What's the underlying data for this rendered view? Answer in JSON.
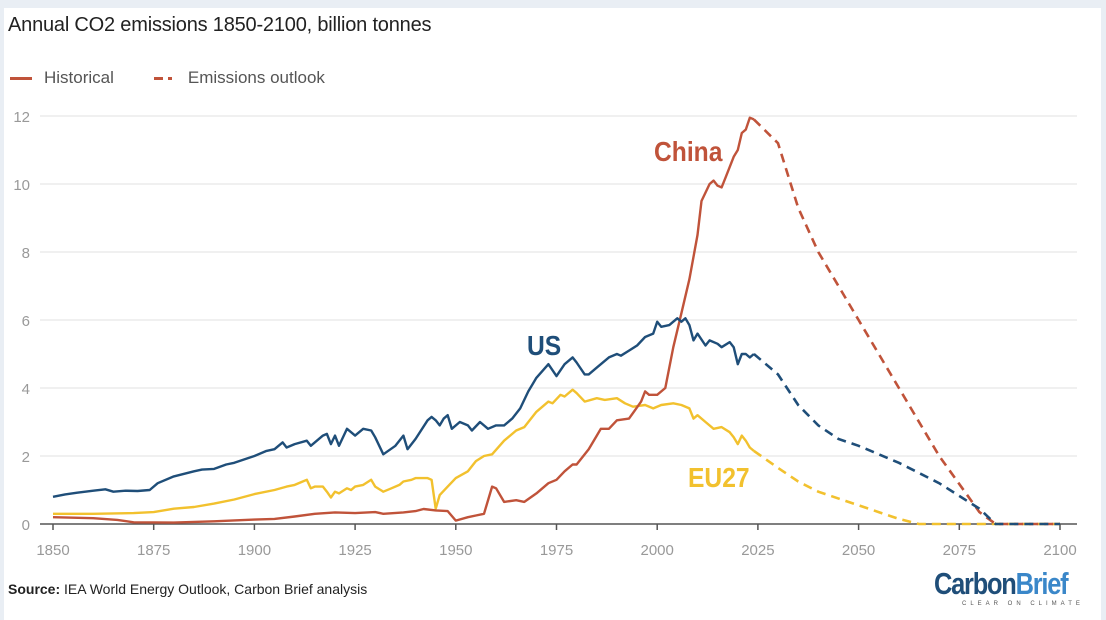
{
  "title": "Annual CO2 emissions 1850-2100, billion tonnes",
  "legend": {
    "historical": "Historical",
    "outlook": "Emissions outlook"
  },
  "source_label": "Source:",
  "source_text": " IEA World Energy Outlook, Carbon Brief analysis",
  "logo": {
    "carbon": "Carbon",
    "brief": "Brief",
    "tagline": "CLEAR ON CLIMATE"
  },
  "colors": {
    "china": "#c0533a",
    "us": "#1f4e79",
    "eu27": "#f2c12e",
    "grid": "#e6e6e6",
    "axis": "#555555",
    "tick_text": "#999999"
  },
  "chart_data": {
    "type": "line",
    "title": "Annual CO2 emissions 1850-2100, billion tonnes",
    "xlabel": "",
    "ylabel": "",
    "xlim": [
      1850,
      2100
    ],
    "ylim": [
      0,
      12
    ],
    "x_ticks": [
      1850,
      1875,
      1900,
      1925,
      1950,
      1975,
      2000,
      2025,
      2050,
      2075,
      2100
    ],
    "y_ticks": [
      0,
      2,
      4,
      6,
      8,
      10,
      12
    ],
    "grid": true,
    "legend_position": "top-left",
    "series": [
      {
        "name": "China",
        "label": "China",
        "historical": [
          [
            1850,
            0.2
          ],
          [
            1860,
            0.17
          ],
          [
            1866,
            0.12
          ],
          [
            1870,
            0.05
          ],
          [
            1880,
            0.04
          ],
          [
            1890,
            0.08
          ],
          [
            1900,
            0.13
          ],
          [
            1905,
            0.15
          ],
          [
            1910,
            0.22
          ],
          [
            1915,
            0.3
          ],
          [
            1920,
            0.34
          ],
          [
            1925,
            0.32
          ],
          [
            1930,
            0.35
          ],
          [
            1932,
            0.3
          ],
          [
            1937,
            0.34
          ],
          [
            1940,
            0.38
          ],
          [
            1942,
            0.44
          ],
          [
            1945,
            0.4
          ],
          [
            1948,
            0.38
          ],
          [
            1950,
            0.1
          ],
          [
            1953,
            0.2
          ],
          [
            1955,
            0.25
          ],
          [
            1957,
            0.3
          ],
          [
            1959,
            1.1
          ],
          [
            1960,
            1.05
          ],
          [
            1962,
            0.65
          ],
          [
            1965,
            0.7
          ],
          [
            1967,
            0.65
          ],
          [
            1970,
            0.9
          ],
          [
            1973,
            1.2
          ],
          [
            1975,
            1.3
          ],
          [
            1977,
            1.55
          ],
          [
            1979,
            1.75
          ],
          [
            1980,
            1.75
          ],
          [
            1983,
            2.2
          ],
          [
            1985,
            2.6
          ],
          [
            1986,
            2.8
          ],
          [
            1988,
            2.8
          ],
          [
            1990,
            3.05
          ],
          [
            1993,
            3.1
          ],
          [
            1996,
            3.6
          ],
          [
            1997,
            3.9
          ],
          [
            1998,
            3.8
          ],
          [
            2000,
            3.8
          ],
          [
            2002,
            4.0
          ],
          [
            2004,
            5.2
          ],
          [
            2006,
            6.2
          ],
          [
            2008,
            7.2
          ],
          [
            2010,
            8.5
          ],
          [
            2011,
            9.5
          ],
          [
            2013,
            10.0
          ],
          [
            2014,
            10.1
          ],
          [
            2015,
            9.95
          ],
          [
            2016,
            9.9
          ],
          [
            2017,
            10.2
          ],
          [
            2019,
            10.8
          ],
          [
            2020,
            11.0
          ],
          [
            2021,
            11.5
          ],
          [
            2022,
            11.6
          ],
          [
            2023,
            11.95
          ],
          [
            2024,
            11.9
          ]
        ],
        "outlook": [
          [
            2024,
            11.9
          ],
          [
            2030,
            11.2
          ],
          [
            2035,
            9.3
          ],
          [
            2040,
            8.0
          ],
          [
            2050,
            6.0
          ],
          [
            2060,
            4.0
          ],
          [
            2070,
            2.0
          ],
          [
            2080,
            0.35
          ],
          [
            2084,
            0.0
          ],
          [
            2100,
            0.0
          ]
        ]
      },
      {
        "name": "US",
        "label": "US",
        "historical": [
          [
            1850,
            0.8
          ],
          [
            1853,
            0.87
          ],
          [
            1856,
            0.92
          ],
          [
            1860,
            0.98
          ],
          [
            1863,
            1.02
          ],
          [
            1865,
            0.95
          ],
          [
            1868,
            0.98
          ],
          [
            1871,
            0.97
          ],
          [
            1874,
            1.0
          ],
          [
            1876,
            1.2
          ],
          [
            1880,
            1.4
          ],
          [
            1885,
            1.55
          ],
          [
            1887,
            1.6
          ],
          [
            1890,
            1.62
          ],
          [
            1893,
            1.75
          ],
          [
            1895,
            1.8
          ],
          [
            1900,
            2.0
          ],
          [
            1903,
            2.15
          ],
          [
            1905,
            2.2
          ],
          [
            1907,
            2.4
          ],
          [
            1908,
            2.25
          ],
          [
            1910,
            2.35
          ],
          [
            1913,
            2.45
          ],
          [
            1914,
            2.3
          ],
          [
            1917,
            2.6
          ],
          [
            1918,
            2.65
          ],
          [
            1919,
            2.35
          ],
          [
            1920,
            2.6
          ],
          [
            1921,
            2.3
          ],
          [
            1923,
            2.8
          ],
          [
            1925,
            2.6
          ],
          [
            1927,
            2.8
          ],
          [
            1929,
            2.75
          ],
          [
            1930,
            2.55
          ],
          [
            1932,
            2.05
          ],
          [
            1935,
            2.3
          ],
          [
            1937,
            2.6
          ],
          [
            1938,
            2.2
          ],
          [
            1940,
            2.5
          ],
          [
            1943,
            3.05
          ],
          [
            1944,
            3.15
          ],
          [
            1945,
            3.05
          ],
          [
            1946,
            2.9
          ],
          [
            1947,
            3.1
          ],
          [
            1948,
            3.2
          ],
          [
            1949,
            2.8
          ],
          [
            1951,
            3.0
          ],
          [
            1953,
            2.9
          ],
          [
            1954,
            2.75
          ],
          [
            1956,
            3.0
          ],
          [
            1958,
            2.8
          ],
          [
            1960,
            2.9
          ],
          [
            1962,
            2.9
          ],
          [
            1964,
            3.1
          ],
          [
            1966,
            3.4
          ],
          [
            1968,
            3.9
          ],
          [
            1970,
            4.3
          ],
          [
            1973,
            4.7
          ],
          [
            1975,
            4.35
          ],
          [
            1977,
            4.7
          ],
          [
            1979,
            4.9
          ],
          [
            1980,
            4.75
          ],
          [
            1982,
            4.4
          ],
          [
            1983,
            4.4
          ],
          [
            1985,
            4.6
          ],
          [
            1988,
            4.9
          ],
          [
            1990,
            5.0
          ],
          [
            1991,
            4.95
          ],
          [
            1993,
            5.1
          ],
          [
            1995,
            5.25
          ],
          [
            1997,
            5.5
          ],
          [
            1999,
            5.6
          ],
          [
            2000,
            5.95
          ],
          [
            2001,
            5.8
          ],
          [
            2003,
            5.85
          ],
          [
            2005,
            6.05
          ],
          [
            2006,
            5.95
          ],
          [
            2007,
            6.05
          ],
          [
            2008,
            5.85
          ],
          [
            2009,
            5.4
          ],
          [
            2010,
            5.6
          ],
          [
            2012,
            5.25
          ],
          [
            2013,
            5.4
          ],
          [
            2015,
            5.3
          ],
          [
            2016,
            5.2
          ],
          [
            2018,
            5.35
          ],
          [
            2019,
            5.2
          ],
          [
            2020,
            4.7
          ],
          [
            2021,
            5.0
          ],
          [
            2022,
            5.0
          ],
          [
            2023,
            4.9
          ],
          [
            2024,
            5.0
          ]
        ],
        "outlook": [
          [
            2024,
            5.0
          ],
          [
            2030,
            4.4
          ],
          [
            2035,
            3.5
          ],
          [
            2040,
            2.9
          ],
          [
            2045,
            2.5
          ],
          [
            2050,
            2.3
          ],
          [
            2060,
            1.8
          ],
          [
            2070,
            1.2
          ],
          [
            2080,
            0.45
          ],
          [
            2084,
            0.0
          ],
          [
            2100,
            0.0
          ]
        ]
      },
      {
        "name": "EU27",
        "label": "EU27",
        "historical": [
          [
            1850,
            0.3
          ],
          [
            1860,
            0.3
          ],
          [
            1870,
            0.32
          ],
          [
            1875,
            0.35
          ],
          [
            1880,
            0.45
          ],
          [
            1885,
            0.5
          ],
          [
            1890,
            0.6
          ],
          [
            1895,
            0.72
          ],
          [
            1900,
            0.88
          ],
          [
            1905,
            1.0
          ],
          [
            1908,
            1.1
          ],
          [
            1910,
            1.15
          ],
          [
            1912,
            1.25
          ],
          [
            1913,
            1.3
          ],
          [
            1914,
            1.05
          ],
          [
            1915,
            1.1
          ],
          [
            1917,
            1.1
          ],
          [
            1918,
            0.95
          ],
          [
            1919,
            0.78
          ],
          [
            1920,
            0.95
          ],
          [
            1921,
            0.9
          ],
          [
            1923,
            1.05
          ],
          [
            1924,
            1.0
          ],
          [
            1925,
            1.1
          ],
          [
            1927,
            1.15
          ],
          [
            1929,
            1.3
          ],
          [
            1930,
            1.1
          ],
          [
            1932,
            0.95
          ],
          [
            1934,
            1.05
          ],
          [
            1936,
            1.15
          ],
          [
            1937,
            1.25
          ],
          [
            1939,
            1.3
          ],
          [
            1940,
            1.35
          ],
          [
            1943,
            1.35
          ],
          [
            1944,
            1.3
          ],
          [
            1945,
            0.45
          ],
          [
            1946,
            0.85
          ],
          [
            1948,
            1.1
          ],
          [
            1950,
            1.35
          ],
          [
            1953,
            1.55
          ],
          [
            1955,
            1.85
          ],
          [
            1957,
            2.0
          ],
          [
            1959,
            2.05
          ],
          [
            1962,
            2.45
          ],
          [
            1965,
            2.75
          ],
          [
            1967,
            2.85
          ],
          [
            1970,
            3.3
          ],
          [
            1973,
            3.6
          ],
          [
            1974,
            3.55
          ],
          [
            1976,
            3.8
          ],
          [
            1977,
            3.75
          ],
          [
            1979,
            3.95
          ],
          [
            1980,
            3.85
          ],
          [
            1982,
            3.6
          ],
          [
            1985,
            3.7
          ],
          [
            1987,
            3.65
          ],
          [
            1990,
            3.7
          ],
          [
            1992,
            3.55
          ],
          [
            1994,
            3.45
          ],
          [
            1997,
            3.5
          ],
          [
            1999,
            3.4
          ],
          [
            2001,
            3.5
          ],
          [
            2004,
            3.55
          ],
          [
            2006,
            3.5
          ],
          [
            2008,
            3.4
          ],
          [
            2009,
            3.1
          ],
          [
            2010,
            3.2
          ],
          [
            2012,
            3.0
          ],
          [
            2014,
            2.8
          ],
          [
            2016,
            2.85
          ],
          [
            2018,
            2.7
          ],
          [
            2019,
            2.55
          ],
          [
            2020,
            2.35
          ],
          [
            2021,
            2.6
          ],
          [
            2022,
            2.45
          ],
          [
            2023,
            2.25
          ],
          [
            2024,
            2.15
          ]
        ],
        "outlook": [
          [
            2024,
            2.15
          ],
          [
            2030,
            1.65
          ],
          [
            2035,
            1.25
          ],
          [
            2040,
            0.95
          ],
          [
            2050,
            0.55
          ],
          [
            2055,
            0.35
          ],
          [
            2060,
            0.15
          ],
          [
            2065,
            0.0
          ],
          [
            2100,
            0.0
          ]
        ]
      }
    ],
    "annotations": [
      {
        "text": "China",
        "series": "China"
      },
      {
        "text": "US",
        "series": "US"
      },
      {
        "text": "EU27",
        "series": "EU27"
      }
    ]
  }
}
